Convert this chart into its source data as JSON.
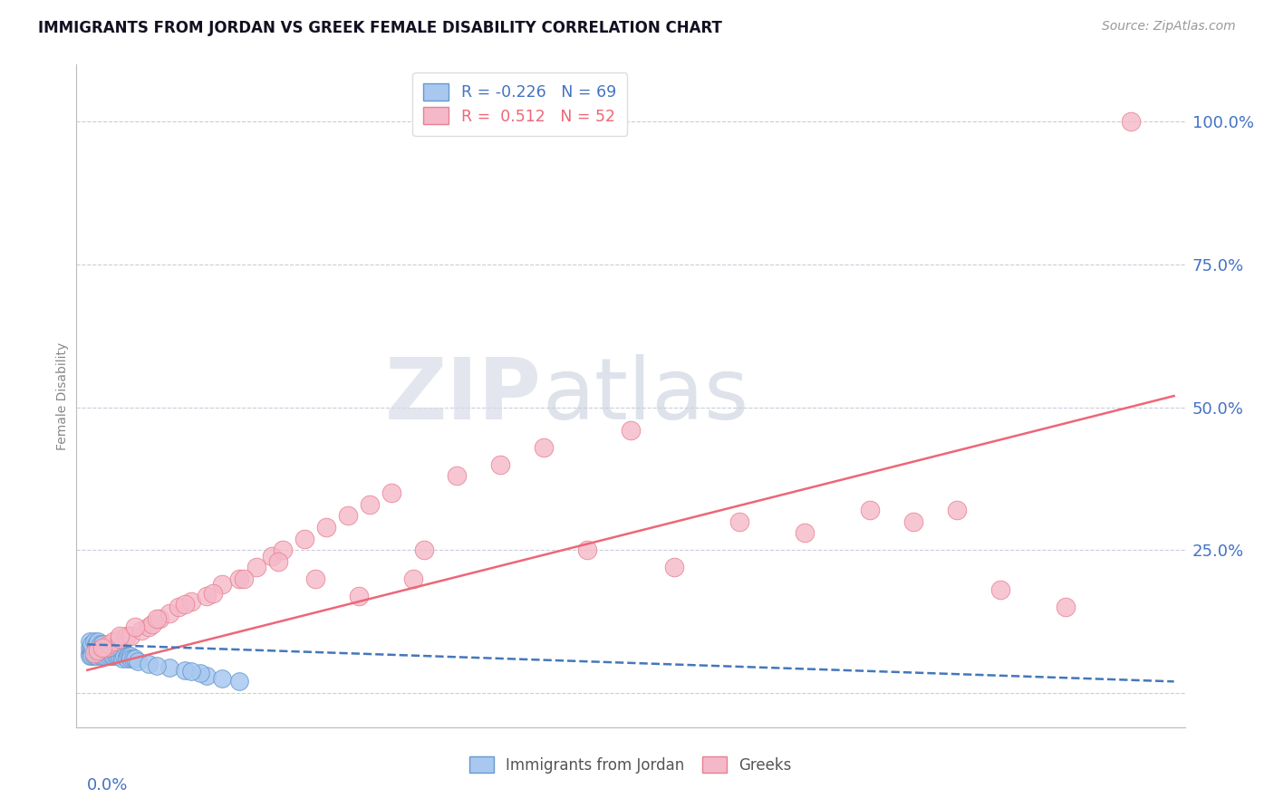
{
  "title": "IMMIGRANTS FROM JORDAN VS GREEK FEMALE DISABILITY CORRELATION CHART",
  "source": "Source: ZipAtlas.com",
  "ylabel": "Female Disability",
  "ytick_values": [
    0.0,
    0.25,
    0.5,
    0.75,
    1.0
  ],
  "ytick_labels": [
    "",
    "25.0%",
    "50.0%",
    "75.0%",
    "100.0%"
  ],
  "xlim": [
    0.0,
    0.5
  ],
  "ylim": [
    -0.06,
    1.1
  ],
  "legend_line1": "R = -0.226   N = 69",
  "legend_line2": "R =  0.512   N = 52",
  "color_blue_fill": "#A8C8F0",
  "color_blue_edge": "#6699CC",
  "color_pink_fill": "#F5B8C8",
  "color_pink_edge": "#E88090",
  "color_blue_line": "#4477BB",
  "color_pink_line": "#EE6677",
  "color_axis_text": "#4472C4",
  "color_grid": "#CCCCDD",
  "color_watermark": "#D8DCE8",
  "watermark_zip": "ZIP",
  "watermark_atlas": "atlas",
  "pink_trend_x0": 0.0,
  "pink_trend_y0": 0.04,
  "pink_trend_x1": 0.5,
  "pink_trend_y1": 0.52,
  "blue_trend_x0": 0.0,
  "blue_trend_y0": 0.085,
  "blue_trend_x1": 0.5,
  "blue_trend_y1": 0.02,
  "blue_dots_x": [
    0.001,
    0.001,
    0.001,
    0.002,
    0.002,
    0.002,
    0.002,
    0.003,
    0.003,
    0.003,
    0.003,
    0.004,
    0.004,
    0.004,
    0.005,
    0.005,
    0.005,
    0.006,
    0.006,
    0.006,
    0.007,
    0.007,
    0.007,
    0.008,
    0.008,
    0.009,
    0.009,
    0.01,
    0.01,
    0.01,
    0.011,
    0.011,
    0.012,
    0.012,
    0.013,
    0.013,
    0.014,
    0.015,
    0.015,
    0.016,
    0.016,
    0.017,
    0.018,
    0.018,
    0.019,
    0.02,
    0.02,
    0.021,
    0.022,
    0.023,
    0.001,
    0.002,
    0.003,
    0.004,
    0.005,
    0.006,
    0.007,
    0.008,
    0.009,
    0.01,
    0.055,
    0.062,
    0.07,
    0.038,
    0.045,
    0.052,
    0.028,
    0.032,
    0.048
  ],
  "blue_dots_y": [
    0.07,
    0.08,
    0.065,
    0.075,
    0.07,
    0.08,
    0.065,
    0.08,
    0.075,
    0.07,
    0.065,
    0.075,
    0.07,
    0.065,
    0.08,
    0.075,
    0.07,
    0.075,
    0.07,
    0.065,
    0.075,
    0.07,
    0.065,
    0.07,
    0.065,
    0.075,
    0.07,
    0.07,
    0.065,
    0.075,
    0.07,
    0.065,
    0.07,
    0.065,
    0.07,
    0.065,
    0.065,
    0.07,
    0.065,
    0.065,
    0.06,
    0.065,
    0.065,
    0.06,
    0.065,
    0.065,
    0.06,
    0.06,
    0.06,
    0.055,
    0.09,
    0.085,
    0.09,
    0.085,
    0.09,
    0.085,
    0.085,
    0.08,
    0.08,
    0.08,
    0.03,
    0.025,
    0.02,
    0.045,
    0.04,
    0.035,
    0.05,
    0.048,
    0.038
  ],
  "pink_dots_x": [
    0.003,
    0.005,
    0.008,
    0.01,
    0.012,
    0.015,
    0.018,
    0.02,
    0.025,
    0.028,
    0.03,
    0.033,
    0.038,
    0.042,
    0.048,
    0.055,
    0.062,
    0.07,
    0.078,
    0.085,
    0.09,
    0.1,
    0.11,
    0.12,
    0.13,
    0.14,
    0.15,
    0.17,
    0.19,
    0.21,
    0.23,
    0.25,
    0.27,
    0.3,
    0.33,
    0.36,
    0.38,
    0.4,
    0.42,
    0.45,
    0.007,
    0.015,
    0.022,
    0.032,
    0.045,
    0.058,
    0.072,
    0.088,
    0.105,
    0.125,
    0.155,
    0.48
  ],
  "pink_dots_y": [
    0.07,
    0.075,
    0.08,
    0.085,
    0.09,
    0.095,
    0.1,
    0.1,
    0.11,
    0.115,
    0.12,
    0.13,
    0.14,
    0.15,
    0.16,
    0.17,
    0.19,
    0.2,
    0.22,
    0.24,
    0.25,
    0.27,
    0.29,
    0.31,
    0.33,
    0.35,
    0.2,
    0.38,
    0.4,
    0.43,
    0.25,
    0.46,
    0.22,
    0.3,
    0.28,
    0.32,
    0.3,
    0.32,
    0.18,
    0.15,
    0.08,
    0.1,
    0.115,
    0.13,
    0.155,
    0.175,
    0.2,
    0.23,
    0.2,
    0.17,
    0.25,
    1.0
  ]
}
